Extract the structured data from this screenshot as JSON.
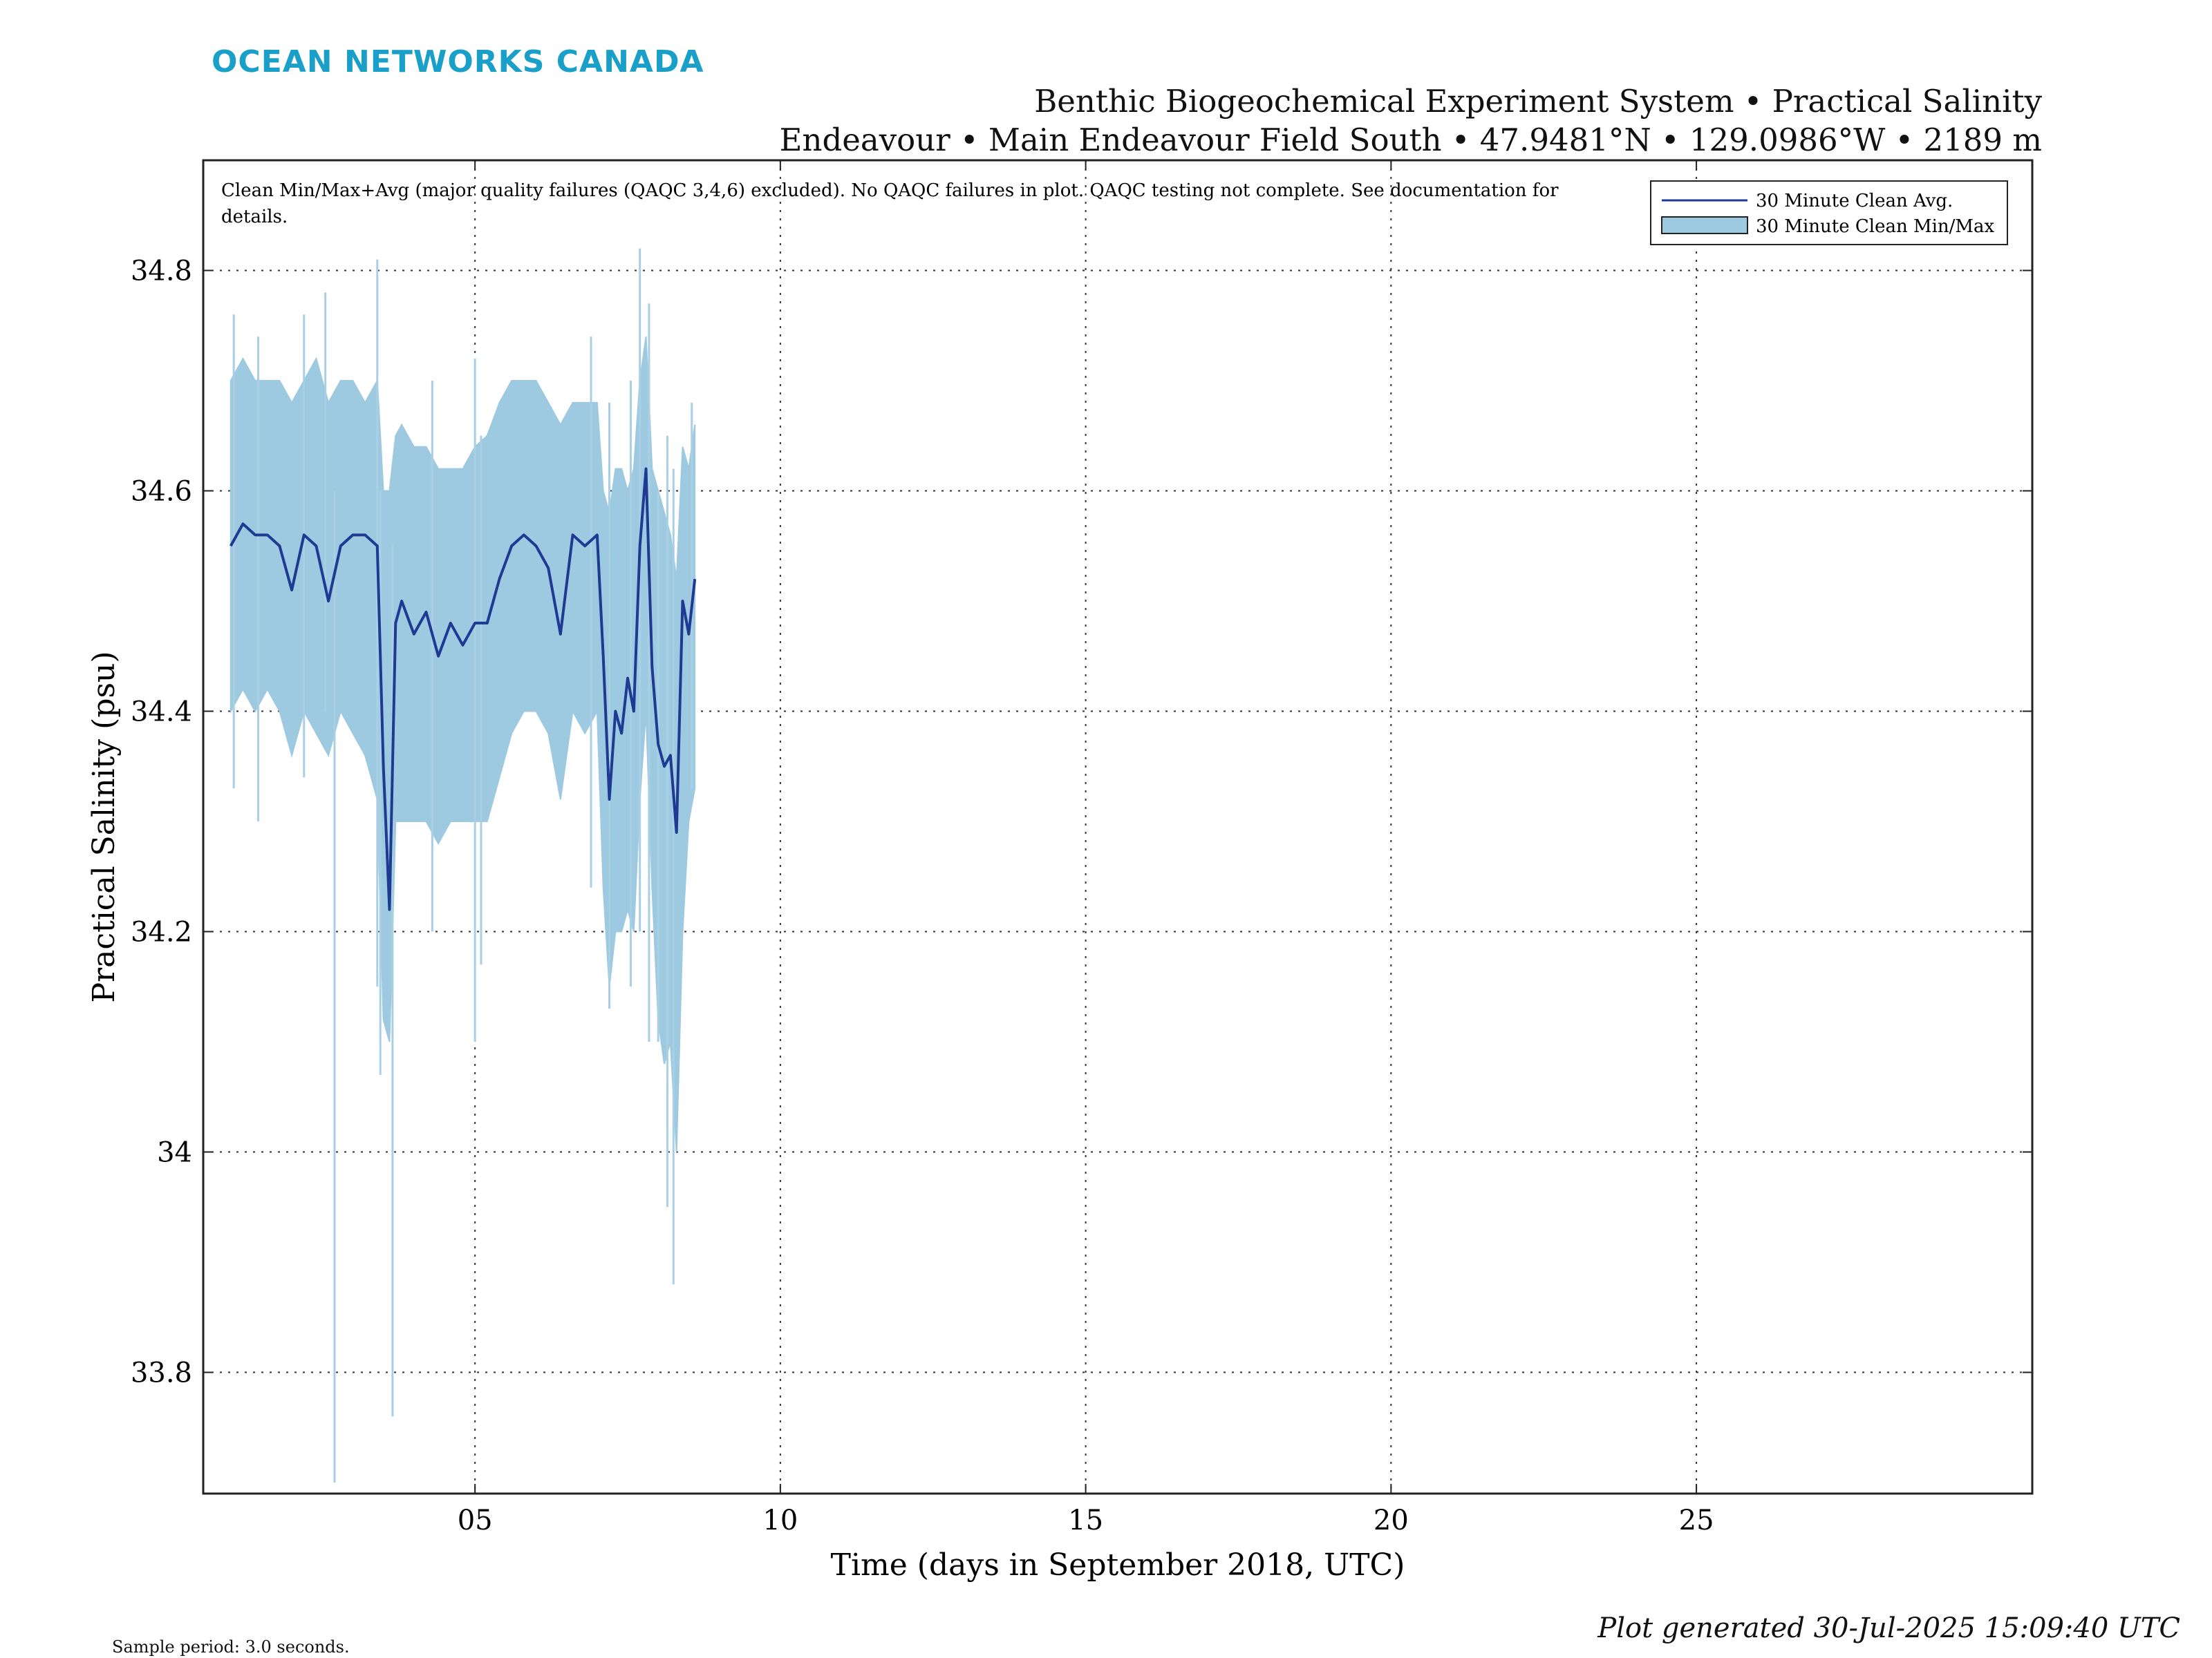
{
  "brand": {
    "logo_text": "OCEAN NETWORKS CANADA",
    "logo_color": "#1aa0c8"
  },
  "title": {
    "line1": "Benthic Biogeochemical Experiment System • Practical Salinity",
    "line2": "Endeavour • Main Endeavour Field South • 47.9481°N • 129.0986°W • 2189 m"
  },
  "annotation": {
    "line1": "Clean Min/Max+Avg (major quality failures (QAQC 3,4,6) excluded).  No QAQC failures in plot.  QAQC testing not complete.  See documentation for",
    "line2": "details."
  },
  "footer": {
    "sample_period": "Sample period: 3.0 seconds.",
    "generated": "Plot generated 30-Jul-2025 15:09:40 UTC"
  },
  "chart_data": {
    "type": "area",
    "xlabel": "Time (days in September 2018, UTC)",
    "ylabel": "Practical Salinity (psu)",
    "xlim": [
      0.55,
      30.5
    ],
    "ylim": [
      33.69,
      34.9
    ],
    "x_ticks": [
      5,
      10,
      15,
      20,
      25
    ],
    "x_tick_labels": [
      "05",
      "10",
      "15",
      "20",
      "25"
    ],
    "y_ticks": [
      33.8,
      34.0,
      34.2,
      34.4,
      34.6,
      34.8
    ],
    "y_tick_labels": [
      "33.8",
      "34",
      "34.2",
      "34.4",
      "34.6",
      "34.8"
    ],
    "grid": true,
    "legend_position": "top-right",
    "colors": {
      "avg_line": "#1f3a93",
      "minmax_fill": "#9ecae1",
      "minmax_spike": "#a9cfe4"
    },
    "series": [
      {
        "name": "30 Minute Clean Avg.",
        "kind": "line",
        "x": [
          1.0,
          1.2,
          1.4,
          1.6,
          1.8,
          2.0,
          2.2,
          2.4,
          2.6,
          2.8,
          3.0,
          3.2,
          3.4,
          3.5,
          3.6,
          3.7,
          3.8,
          4.0,
          4.2,
          4.4,
          4.6,
          4.8,
          5.0,
          5.2,
          5.4,
          5.6,
          5.8,
          6.0,
          6.2,
          6.4,
          6.6,
          6.8,
          7.0,
          7.1,
          7.2,
          7.3,
          7.4,
          7.5,
          7.6,
          7.7,
          7.8,
          7.9,
          8.0,
          8.1,
          8.2,
          8.3,
          8.4,
          8.5,
          8.6
        ],
        "values": [
          34.55,
          34.57,
          34.56,
          34.56,
          34.55,
          34.51,
          34.56,
          34.55,
          34.5,
          34.55,
          34.56,
          34.56,
          34.55,
          34.35,
          34.22,
          34.48,
          34.5,
          34.47,
          34.49,
          34.45,
          34.48,
          34.46,
          34.48,
          34.48,
          34.52,
          34.55,
          34.56,
          34.55,
          34.53,
          34.47,
          34.56,
          34.55,
          34.56,
          34.45,
          34.32,
          34.4,
          34.38,
          34.43,
          34.4,
          34.55,
          34.62,
          34.44,
          34.37,
          34.35,
          34.36,
          34.29,
          34.5,
          34.47,
          34.52
        ]
      },
      {
        "name": "30 Minute Clean Min/Max",
        "kind": "band",
        "x": [
          1.0,
          1.2,
          1.4,
          1.6,
          1.8,
          2.0,
          2.2,
          2.4,
          2.6,
          2.8,
          3.0,
          3.2,
          3.4,
          3.5,
          3.6,
          3.7,
          3.8,
          4.0,
          4.2,
          4.4,
          4.6,
          4.8,
          5.0,
          5.2,
          5.4,
          5.6,
          5.8,
          6.0,
          6.2,
          6.4,
          6.6,
          6.8,
          7.0,
          7.1,
          7.2,
          7.3,
          7.4,
          7.5,
          7.6,
          7.7,
          7.8,
          7.9,
          8.0,
          8.1,
          8.2,
          8.3,
          8.4,
          8.5,
          8.6
        ],
        "max": [
          34.7,
          34.72,
          34.7,
          34.7,
          34.7,
          34.68,
          34.7,
          34.72,
          34.68,
          34.7,
          34.7,
          34.68,
          34.7,
          34.6,
          34.6,
          34.65,
          34.66,
          34.64,
          34.64,
          34.62,
          34.62,
          34.62,
          34.64,
          34.65,
          34.68,
          34.7,
          34.7,
          34.7,
          34.68,
          34.66,
          34.68,
          34.68,
          34.68,
          34.6,
          34.58,
          34.62,
          34.62,
          34.6,
          34.62,
          34.7,
          34.74,
          34.62,
          34.6,
          34.58,
          34.56,
          34.52,
          34.64,
          34.62,
          34.66
        ],
        "min": [
          34.4,
          34.42,
          34.4,
          34.42,
          34.4,
          34.36,
          34.4,
          34.38,
          34.36,
          34.4,
          34.38,
          34.36,
          34.32,
          34.12,
          34.1,
          34.3,
          34.3,
          34.3,
          34.3,
          34.28,
          34.3,
          34.3,
          34.3,
          34.3,
          34.34,
          34.38,
          34.4,
          34.4,
          34.38,
          34.32,
          34.4,
          34.38,
          34.4,
          34.24,
          34.15,
          34.2,
          34.2,
          34.22,
          34.2,
          34.32,
          34.4,
          34.24,
          34.12,
          34.08,
          34.1,
          34.0,
          34.2,
          34.3,
          34.33
        ],
        "spikes": [
          {
            "x": 1.05,
            "min": 34.33,
            "max": 34.76
          },
          {
            "x": 1.45,
            "min": 34.3,
            "max": 34.74
          },
          {
            "x": 2.2,
            "min": 34.34,
            "max": 34.76
          },
          {
            "x": 2.55,
            "min": 34.4,
            "max": 34.78
          },
          {
            "x": 2.7,
            "min": 33.7,
            "max": 34.6
          },
          {
            "x": 3.4,
            "min": 34.15,
            "max": 34.81
          },
          {
            "x": 3.45,
            "min": 34.07,
            "max": 34.6
          },
          {
            "x": 3.65,
            "min": 33.76,
            "max": 34.55
          },
          {
            "x": 4.3,
            "min": 34.2,
            "max": 34.7
          },
          {
            "x": 5.0,
            "min": 34.1,
            "max": 34.72
          },
          {
            "x": 5.1,
            "min": 34.17,
            "max": 34.65
          },
          {
            "x": 6.9,
            "min": 34.24,
            "max": 34.74
          },
          {
            "x": 7.2,
            "min": 34.13,
            "max": 34.68
          },
          {
            "x": 7.55,
            "min": 34.15,
            "max": 34.7
          },
          {
            "x": 7.7,
            "min": 34.2,
            "max": 34.82
          },
          {
            "x": 7.85,
            "min": 34.1,
            "max": 34.77
          },
          {
            "x": 8.0,
            "min": 34.1,
            "max": 34.6
          },
          {
            "x": 8.15,
            "min": 33.95,
            "max": 34.65
          },
          {
            "x": 8.25,
            "min": 33.88,
            "max": 34.62
          },
          {
            "x": 8.55,
            "min": 34.33,
            "max": 34.68
          }
        ]
      }
    ],
    "legend": [
      {
        "label": "30 Minute Clean Avg.",
        "kind": "line"
      },
      {
        "label": "30 Minute Clean Min/Max",
        "kind": "band"
      }
    ]
  }
}
